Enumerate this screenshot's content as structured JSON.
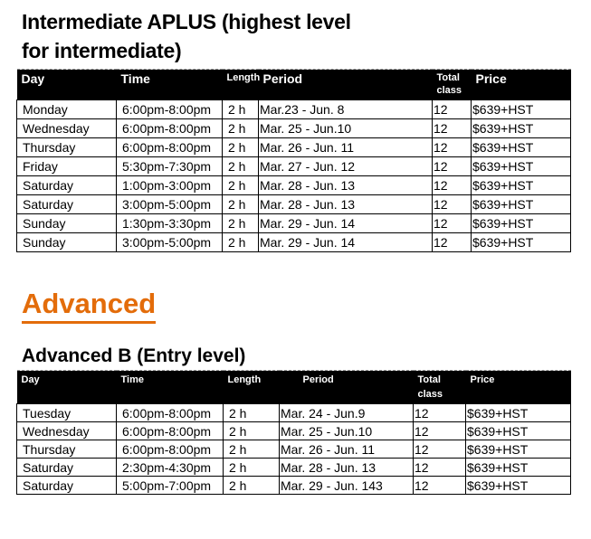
{
  "intermediate": {
    "title_line1": "Intermediate APLUS (highest level",
    "title_line2": "for intermediate)",
    "headers": [
      "Day",
      "Time",
      "Length",
      "Period",
      "Total class",
      "Price"
    ],
    "rows": [
      [
        "Monday",
        "6:00pm-8:00pm",
        "2 h",
        "Mar.23 - Jun. 8",
        "12",
        "$639+HST"
      ],
      [
        "Wednesday",
        "6:00pm-8:00pm",
        "2 h",
        "Mar. 25 - Jun.10",
        "12",
        "$639+HST"
      ],
      [
        "Thursday",
        "6:00pm-8:00pm",
        "2 h",
        "Mar. 26 - Jun. 11",
        "12",
        "$639+HST"
      ],
      [
        "Friday",
        "5:30pm-7:30pm",
        "2 h",
        "Mar. 27 - Jun. 12",
        "12",
        "$639+HST"
      ],
      [
        "Saturday",
        "1:00pm-3:00pm",
        "2 h",
        "Mar. 28 - Jun. 13",
        "12",
        "$639+HST"
      ],
      [
        "Saturday",
        "3:00pm-5:00pm",
        "2 h",
        "Mar. 28 - Jun. 13",
        "12",
        "$639+HST"
      ],
      [
        "Sunday",
        "1:30pm-3:30pm",
        "2 h",
        "Mar. 29 - Jun. 14",
        "12",
        "$639+HST"
      ],
      [
        "Sunday",
        "3:00pm-5:00pm",
        "2 h",
        "Mar. 29 - Jun. 14",
        "12",
        "$639+HST"
      ]
    ]
  },
  "advanced_heading": "Advanced",
  "advanced_color": "#e36c0a",
  "advanced_b": {
    "title": "Advanced B (Entry level)",
    "headers": [
      "Day",
      "Time",
      "Length",
      "Period",
      "Total class",
      "Price"
    ],
    "rows": [
      [
        "Tuesday",
        "6:00pm-8:00pm",
        "2 h",
        "Mar. 24 - Jun.9",
        "12",
        "$639+HST"
      ],
      [
        "Wednesday",
        "6:00pm-8:00pm",
        "2 h",
        "Mar. 25 - Jun.10",
        "12",
        "$639+HST"
      ],
      [
        "Thursday",
        "6:00pm-8:00pm",
        "2 h",
        "Mar. 26 - Jun. 11",
        "12",
        "$639+HST"
      ],
      [
        "Saturday",
        "2:30pm-4:30pm",
        "2 h",
        "Mar. 28 - Jun. 13",
        "12",
        "$639+HST"
      ],
      [
        "Saturday",
        "5:00pm-7:00pm",
        "2 h",
        "Mar. 29 - Jun. 143",
        "12",
        "$639+HST"
      ]
    ]
  }
}
